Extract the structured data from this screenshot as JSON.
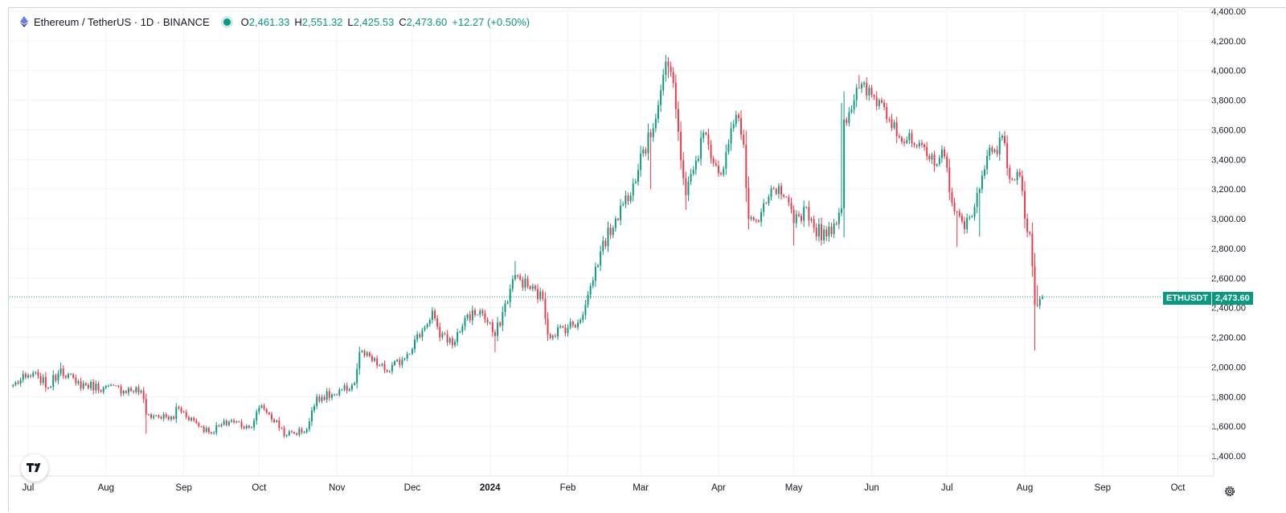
{
  "legend": {
    "symbol_title": "Ethereum / TetherUS · 1D · BINANCE",
    "open_label": "O",
    "open": "2,461.33",
    "high_label": "H",
    "high": "2,551.32",
    "low_label": "L",
    "low": "2,425.53",
    "close_label": "C",
    "close": "2,473.60",
    "change": "+12.27 (+0.50%)"
  },
  "price_tag": {
    "symbol": "ETHUSDT",
    "price": "2,473.60"
  },
  "colors": {
    "up": "#089981",
    "down": "#f23645",
    "grid": "#f0f3fa",
    "text": "#131722"
  },
  "icons": {
    "logo": "tradingview-logo-icon",
    "settings": "gear-icon"
  },
  "chart_data": {
    "type": "candlestick",
    "title": "Ethereum / TetherUS · 1D · BINANCE",
    "ylim": [
      1300,
      4400
    ],
    "y_ticks": [
      "1,400.00",
      "1,600.00",
      "1,800.00",
      "2,000.00",
      "2,200.00",
      "2,400.00",
      "2,600.00",
      "2,800.00",
      "3,000.00",
      "3,200.00",
      "3,400.00",
      "3,600.00",
      "3,800.00",
      "4,000.00",
      "4,200.00",
      "4,400.00"
    ],
    "x_ticks": [
      {
        "label": "Jul",
        "date": "2023-07-01"
      },
      {
        "label": "Aug",
        "date": "2023-08-01"
      },
      {
        "label": "Sep",
        "date": "2023-09-01"
      },
      {
        "label": "Oct",
        "date": "2023-10-01"
      },
      {
        "label": "Nov",
        "date": "2023-11-01"
      },
      {
        "label": "Dec",
        "date": "2023-12-01"
      },
      {
        "label": "2024",
        "date": "2024-01-01",
        "bold": true
      },
      {
        "label": "Feb",
        "date": "2024-02-01"
      },
      {
        "label": "Mar",
        "date": "2024-03-01"
      },
      {
        "label": "Apr",
        "date": "2024-04-01"
      },
      {
        "label": "May",
        "date": "2024-05-01"
      },
      {
        "label": "Jun",
        "date": "2024-06-01"
      },
      {
        "label": "Jul",
        "date": "2024-07-01"
      },
      {
        "label": "Aug",
        "date": "2024-08-01"
      },
      {
        "label": "Sep",
        "date": "2024-09-01"
      },
      {
        "label": "Oct",
        "date": "2024-10-01"
      }
    ],
    "grid": true,
    "last_price": 2473.6,
    "close_keypoints": [
      [
        "2023-06-25",
        1880
      ],
      [
        "2023-06-30",
        1930
      ],
      [
        "2023-07-05",
        1940
      ],
      [
        "2023-07-09",
        1860
      ],
      [
        "2023-07-14",
        1990
      ],
      [
        "2023-07-20",
        1890
      ],
      [
        "2023-07-31",
        1860
      ],
      [
        "2023-08-15",
        1840
      ],
      [
        "2023-08-17",
        1680
      ],
      [
        "2023-08-28",
        1650
      ],
      [
        "2023-08-29",
        1730
      ],
      [
        "2023-09-11",
        1560
      ],
      [
        "2023-09-20",
        1640
      ],
      [
        "2023-09-27",
        1590
      ],
      [
        "2023-10-02",
        1740
      ],
      [
        "2023-10-12",
        1540
      ],
      [
        "2023-10-20",
        1580
      ],
      [
        "2023-10-24",
        1800
      ],
      [
        "2023-11-01",
        1810
      ],
      [
        "2023-11-08",
        1890
      ],
      [
        "2023-11-10",
        2100
      ],
      [
        "2023-11-21",
        1970
      ],
      [
        "2023-11-27",
        2050
      ],
      [
        "2023-12-06",
        2270
      ],
      [
        "2023-12-09",
        2380
      ],
      [
        "2023-12-12",
        2200
      ],
      [
        "2023-12-18",
        2170
      ],
      [
        "2023-12-22",
        2330
      ],
      [
        "2023-12-28",
        2380
      ],
      [
        "2024-01-03",
        2210
      ],
      [
        "2024-01-11",
        2620
      ],
      [
        "2024-01-13",
        2590
      ],
      [
        "2024-01-22",
        2460
      ],
      [
        "2024-01-24",
        2220
      ],
      [
        "2024-02-05",
        2300
      ],
      [
        "2024-02-08",
        2420
      ],
      [
        "2024-02-14",
        2780
      ],
      [
        "2024-02-20",
        3000
      ],
      [
        "2024-02-27",
        3240
      ],
      [
        "2024-03-01",
        3440
      ],
      [
        "2024-03-05",
        3550
      ],
      [
        "2024-03-11",
        4060
      ],
      [
        "2024-03-13",
        3990
      ],
      [
        "2024-03-19",
        3160
      ],
      [
        "2024-03-22",
        3330
      ],
      [
        "2024-03-26",
        3580
      ],
      [
        "2024-03-28",
        3500
      ],
      [
        "2024-04-02",
        3300
      ],
      [
        "2024-04-08",
        3700
      ],
      [
        "2024-04-11",
        3500
      ],
      [
        "2024-04-13",
        3000
      ],
      [
        "2024-04-17",
        2980
      ],
      [
        "2024-04-23",
        3200
      ],
      [
        "2024-04-27",
        3150
      ],
      [
        "2024-05-01",
        2970
      ],
      [
        "2024-05-06",
        3080
      ],
      [
        "2024-05-09",
        2940
      ],
      [
        "2024-05-14",
        2880
      ],
      [
        "2024-05-20",
        3070
      ],
      [
        "2024-05-21",
        3670
      ],
      [
        "2024-05-27",
        3880
      ],
      [
        "2024-06-04",
        3800
      ],
      [
        "2024-06-10",
        3650
      ],
      [
        "2024-06-12",
        3550
      ],
      [
        "2024-06-17",
        3510
      ],
      [
        "2024-06-24",
        3400
      ],
      [
        "2024-06-30",
        3420
      ],
      [
        "2024-07-04",
        3050
      ],
      [
        "2024-07-08",
        2930
      ],
      [
        "2024-07-14",
        3200
      ],
      [
        "2024-07-18",
        3480
      ],
      [
        "2024-07-24",
        3510
      ],
      [
        "2024-07-26",
        3270
      ],
      [
        "2024-07-30",
        3290
      ],
      [
        "2024-08-01",
        3000
      ],
      [
        "2024-08-03",
        2900
      ],
      [
        "2024-08-04",
        2680
      ],
      [
        "2024-08-05",
        2420
      ],
      [
        "2024-08-07",
        2460
      ],
      [
        "2024-08-08",
        2473.6
      ]
    ],
    "extreme_wicks": [
      {
        "date": "2024-03-12",
        "high": 4090,
        "low": 3950
      },
      {
        "date": "2024-03-05",
        "low": 3200
      },
      {
        "date": "2024-03-19",
        "low": 3060
      },
      {
        "date": "2024-01-11",
        "high": 2715
      },
      {
        "date": "2024-01-03",
        "low": 2100
      },
      {
        "date": "2024-05-20",
        "high": 3780
      },
      {
        "date": "2024-05-27",
        "high": 3970
      },
      {
        "date": "2024-07-05",
        "low": 2810
      },
      {
        "date": "2024-08-05",
        "low": 2110
      },
      {
        "date": "2024-08-06",
        "high": 2550
      },
      {
        "date": "2024-07-14",
        "low": 2880
      },
      {
        "date": "2023-08-17",
        "low": 1550
      },
      {
        "date": "2023-10-12",
        "low": 1525
      },
      {
        "date": "2023-07-14",
        "high": 2030
      },
      {
        "date": "2024-05-01",
        "low": 2820
      }
    ]
  }
}
